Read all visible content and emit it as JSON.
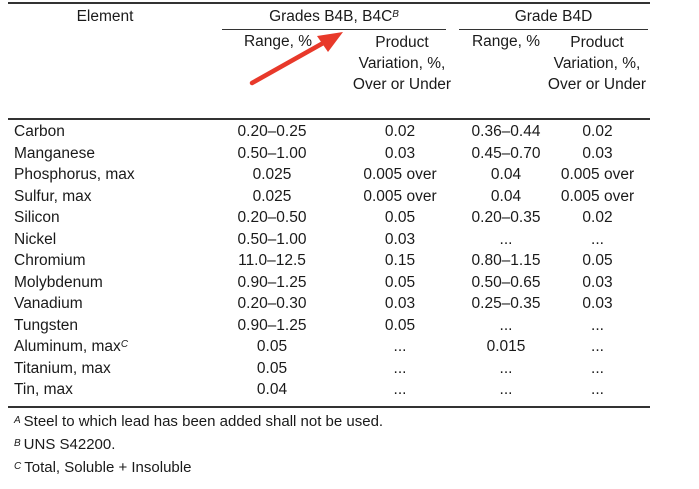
{
  "table": {
    "headers": {
      "element": "Element",
      "group_a": "Grades B4B, B4C",
      "group_a_note": "B",
      "group_b": "Grade B4D",
      "range_a": "Range, %",
      "product_variation_a": "Product Variation, %, Over or Under",
      "range_b": "Range, %",
      "product_variation_b": "Product Variation, %, Over or Under"
    },
    "rows": [
      {
        "element": "Carbon",
        "note": "",
        "range_a": "0.20–0.25",
        "pv_a": "0.02",
        "range_b": "0.36–0.44",
        "pv_b": "0.02"
      },
      {
        "element": "Manganese",
        "note": "",
        "range_a": "0.50–1.00",
        "pv_a": "0.03",
        "range_b": "0.45–0.70",
        "pv_b": "0.03"
      },
      {
        "element": "Phosphorus, max",
        "note": "",
        "range_a": "0.025",
        "pv_a": "0.005 over",
        "range_b": "0.04",
        "pv_b": "0.005 over"
      },
      {
        "element": "Sulfur, max",
        "note": "",
        "range_a": "0.025",
        "pv_a": "0.005 over",
        "range_b": "0.04",
        "pv_b": "0.005 over"
      },
      {
        "element": "Silicon",
        "note": "",
        "range_a": "0.20–0.50",
        "pv_a": "0.05",
        "range_b": "0.20–0.35",
        "pv_b": "0.02"
      },
      {
        "element": "Nickel",
        "note": "",
        "range_a": "0.50–1.00",
        "pv_a": "0.03",
        "range_b": "...",
        "pv_b": "..."
      },
      {
        "element": "Chromium",
        "note": "",
        "range_a": "11.0–12.5",
        "pv_a": "0.15",
        "range_b": "0.80–1.15",
        "pv_b": "0.05"
      },
      {
        "element": "Molybdenum",
        "note": "",
        "range_a": "0.90–1.25",
        "pv_a": "0.05",
        "range_b": "0.50–0.65",
        "pv_b": "0.03"
      },
      {
        "element": "Vanadium",
        "note": "",
        "range_a": "0.20–0.30",
        "pv_a": "0.03",
        "range_b": "0.25–0.35",
        "pv_b": "0.03"
      },
      {
        "element": "Tungsten",
        "note": "",
        "range_a": "0.90–1.25",
        "pv_a": "0.05",
        "range_b": "...",
        "pv_b": "..."
      },
      {
        "element": "Aluminum, max",
        "note": "C",
        "range_a": "0.05",
        "pv_a": "...",
        "range_b": "0.015",
        "pv_b": "..."
      },
      {
        "element": "Titanium, max",
        "note": "",
        "range_a": "0.05",
        "pv_a": "...",
        "range_b": "...",
        "pv_b": "..."
      },
      {
        "element": "Tin, max",
        "note": "",
        "range_a": "0.04",
        "pv_a": "...",
        "range_b": "...",
        "pv_b": "..."
      }
    ]
  },
  "footnotes": [
    {
      "mark": "A",
      "text": "Steel to which lead has been added shall not be used."
    },
    {
      "mark": "B",
      "text": "UNS S42200."
    },
    {
      "mark": "C",
      "text": "Total, Soluble + Insoluble"
    }
  ],
  "colors": {
    "arrow": "#e8392a",
    "text": "#1a1a1a",
    "rules": "#333333"
  },
  "icons": {
    "annotation_arrow": "red-arrow-icon"
  }
}
